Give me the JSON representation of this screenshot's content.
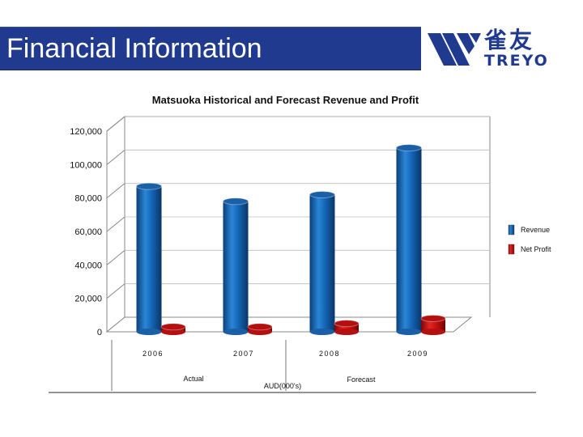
{
  "header": {
    "title": "Financial Information",
    "bar_color": "#1f3a8f"
  },
  "logo": {
    "name_cn": "雀友",
    "name_en": "TREYO",
    "icon": "treyo-logo-icon"
  },
  "chart_data": {
    "type": "bar",
    "title": "Matsuoka Historical and Forecast Revenue and Profit",
    "categories": [
      "2006",
      "2007",
      "2008",
      "2009"
    ],
    "series": [
      {
        "name": "Revenue",
        "values": [
          87000,
          78000,
          82000,
          110000
        ],
        "color": "#1466b8"
      },
      {
        "name": "Net Profit",
        "values": [
          3000,
          3000,
          5000,
          8000
        ],
        "color": "#cc1111"
      }
    ],
    "yticks": [
      "0",
      "20,000",
      "40,000",
      "60,000",
      "80,000",
      "100,000",
      "120,000"
    ],
    "ylim": [
      0,
      120000
    ],
    "grid": true,
    "legend_position": "right",
    "annotations": [
      "Actual",
      "AUD(000's)",
      "Forecast"
    ]
  }
}
